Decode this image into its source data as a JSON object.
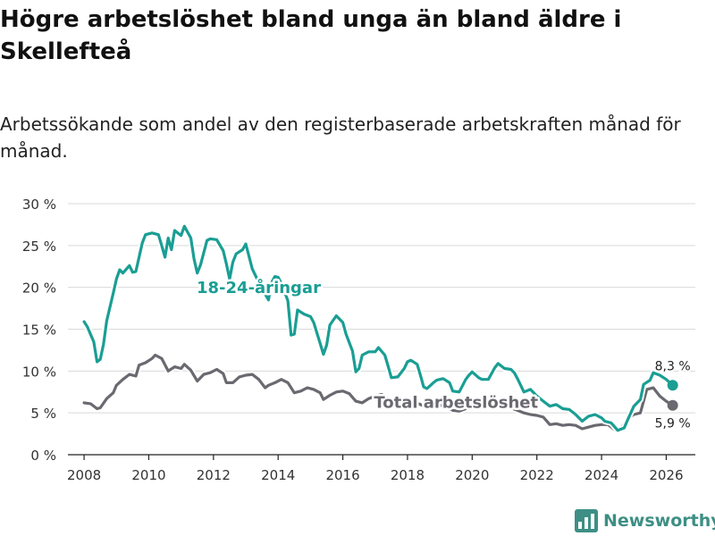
{
  "title": "Högre arbetslöshet bland unga än bland äldre i Skellefteå",
  "subtitle": "Arbetssökande som andel av den registerbaserade arbetskraften månad för månad.",
  "brand": {
    "name": "Newsworthy",
    "icon": "bar-chart-logo-icon",
    "color": "#3d8f85"
  },
  "chart_data": {
    "type": "line",
    "xlim": [
      2007.5,
      2026.9
    ],
    "ylim": [
      0,
      30
    ],
    "yticks": [
      {
        "value": 0,
        "label": "0 %"
      },
      {
        "value": 5,
        "label": "5 %"
      },
      {
        "value": 10,
        "label": "10 %"
      },
      {
        "value": 15,
        "label": "15 %"
      },
      {
        "value": 20,
        "label": "20 %"
      },
      {
        "value": 25,
        "label": "25 %"
      },
      {
        "value": 30,
        "label": "30 %"
      }
    ],
    "xticks": [
      {
        "value": 2008,
        "label": "2008"
      },
      {
        "value": 2010,
        "label": "2010"
      },
      {
        "value": 2012,
        "label": "2012"
      },
      {
        "value": 2014,
        "label": "2014"
      },
      {
        "value": 2016,
        "label": "2016"
      },
      {
        "value": 2018,
        "label": "2018"
      },
      {
        "value": 2020,
        "label": "2020"
      },
      {
        "value": 2022,
        "label": "2022"
      },
      {
        "value": 2024,
        "label": "2024"
      },
      {
        "value": 2026,
        "label": "2026"
      }
    ],
    "grid": true,
    "series": [
      {
        "name": "Total arbetslöshet",
        "color": "#6b6970",
        "label": "Total arbetslöshet",
        "end_label": "5,9 %",
        "points": [
          [
            2008.0,
            6.2
          ],
          [
            2008.2,
            6.1
          ],
          [
            2008.4,
            5.5
          ],
          [
            2008.5,
            5.6
          ],
          [
            2008.7,
            6.7
          ],
          [
            2008.9,
            7.4
          ],
          [
            2009.0,
            8.3
          ],
          [
            2009.2,
            9.0
          ],
          [
            2009.4,
            9.6
          ],
          [
            2009.6,
            9.4
          ],
          [
            2009.7,
            10.7
          ],
          [
            2009.9,
            11.0
          ],
          [
            2010.1,
            11.5
          ],
          [
            2010.2,
            11.9
          ],
          [
            2010.4,
            11.5
          ],
          [
            2010.6,
            10.0
          ],
          [
            2010.8,
            10.5
          ],
          [
            2011.0,
            10.3
          ],
          [
            2011.1,
            10.8
          ],
          [
            2011.3,
            10.1
          ],
          [
            2011.5,
            8.8
          ],
          [
            2011.7,
            9.6
          ],
          [
            2011.9,
            9.8
          ],
          [
            2012.1,
            10.2
          ],
          [
            2012.3,
            9.7
          ],
          [
            2012.4,
            8.6
          ],
          [
            2012.6,
            8.6
          ],
          [
            2012.8,
            9.3
          ],
          [
            2013.0,
            9.5
          ],
          [
            2013.2,
            9.6
          ],
          [
            2013.4,
            9.0
          ],
          [
            2013.6,
            8.0
          ],
          [
            2013.7,
            8.3
          ],
          [
            2013.9,
            8.6
          ],
          [
            2014.1,
            9.0
          ],
          [
            2014.3,
            8.6
          ],
          [
            2014.5,
            7.4
          ],
          [
            2014.7,
            7.6
          ],
          [
            2014.9,
            8.0
          ],
          [
            2015.1,
            7.8
          ],
          [
            2015.3,
            7.4
          ],
          [
            2015.4,
            6.6
          ],
          [
            2015.6,
            7.1
          ],
          [
            2015.8,
            7.5
          ],
          [
            2016.0,
            7.6
          ],
          [
            2016.2,
            7.3
          ],
          [
            2016.4,
            6.4
          ],
          [
            2016.6,
            6.2
          ],
          [
            2016.8,
            6.7
          ],
          [
            2017.0,
            7.0
          ],
          [
            2017.2,
            7.2
          ],
          [
            2017.4,
            6.7
          ],
          [
            2017.6,
            6.3
          ],
          [
            2017.8,
            6.1
          ],
          [
            2018.0,
            6.1
          ],
          [
            2018.2,
            6.3
          ],
          [
            2018.4,
            6.0
          ],
          [
            2018.6,
            5.6
          ],
          [
            2018.8,
            5.7
          ],
          [
            2019.0,
            5.9
          ],
          [
            2019.2,
            5.8
          ],
          [
            2019.4,
            5.3
          ],
          [
            2019.6,
            5.2
          ],
          [
            2019.8,
            5.5
          ],
          [
            2020.0,
            5.8
          ],
          [
            2020.2,
            6.0
          ],
          [
            2020.4,
            6.2
          ],
          [
            2020.6,
            6.0
          ],
          [
            2020.8,
            5.8
          ],
          [
            2021.0,
            5.7
          ],
          [
            2021.2,
            5.6
          ],
          [
            2021.4,
            5.3
          ],
          [
            2021.6,
            5.0
          ],
          [
            2021.8,
            4.8
          ],
          [
            2022.0,
            4.7
          ],
          [
            2022.2,
            4.5
          ],
          [
            2022.4,
            3.6
          ],
          [
            2022.6,
            3.7
          ],
          [
            2022.8,
            3.5
          ],
          [
            2023.0,
            3.6
          ],
          [
            2023.2,
            3.5
          ],
          [
            2023.4,
            3.1
          ],
          [
            2023.6,
            3.3
          ],
          [
            2023.8,
            3.5
          ],
          [
            2024.0,
            3.6
          ],
          [
            2024.2,
            3.6
          ],
          [
            2024.4,
            3.0
          ],
          [
            2024.6,
            3.1
          ],
          [
            2024.8,
            4.3
          ],
          [
            2025.0,
            4.8
          ],
          [
            2025.2,
            5.0
          ],
          [
            2025.4,
            7.8
          ],
          [
            2025.6,
            8.0
          ],
          [
            2025.8,
            7.0
          ],
          [
            2026.0,
            6.4
          ],
          [
            2026.2,
            5.9
          ]
        ]
      },
      {
        "name": "18-24-åringar",
        "color": "#1a9e94",
        "label": "18-24-åringar",
        "end_label": "8,3 %",
        "points": [
          [
            2008.0,
            15.9
          ],
          [
            2008.1,
            15.3
          ],
          [
            2008.3,
            13.5
          ],
          [
            2008.4,
            11.1
          ],
          [
            2008.5,
            11.4
          ],
          [
            2008.6,
            13.2
          ],
          [
            2008.7,
            16.0
          ],
          [
            2008.9,
            19.3
          ],
          [
            2009.0,
            21.0
          ],
          [
            2009.1,
            22.1
          ],
          [
            2009.2,
            21.7
          ],
          [
            2009.4,
            22.6
          ],
          [
            2009.5,
            21.8
          ],
          [
            2009.6,
            21.9
          ],
          [
            2009.8,
            25.3
          ],
          [
            2009.9,
            26.3
          ],
          [
            2010.1,
            26.5
          ],
          [
            2010.3,
            26.3
          ],
          [
            2010.4,
            25.0
          ],
          [
            2010.5,
            23.6
          ],
          [
            2010.6,
            25.9
          ],
          [
            2010.7,
            24.5
          ],
          [
            2010.8,
            26.8
          ],
          [
            2011.0,
            26.2
          ],
          [
            2011.1,
            27.3
          ],
          [
            2011.3,
            25.9
          ],
          [
            2011.4,
            23.4
          ],
          [
            2011.5,
            21.7
          ],
          [
            2011.6,
            22.7
          ],
          [
            2011.8,
            25.6
          ],
          [
            2011.9,
            25.8
          ],
          [
            2012.1,
            25.7
          ],
          [
            2012.3,
            24.4
          ],
          [
            2012.4,
            22.8
          ],
          [
            2012.5,
            21.0
          ],
          [
            2012.6,
            23.0
          ],
          [
            2012.7,
            24.0
          ],
          [
            2012.9,
            24.5
          ],
          [
            2013.0,
            25.2
          ],
          [
            2013.2,
            22.2
          ],
          [
            2013.3,
            21.4
          ],
          [
            2013.4,
            20.6
          ],
          [
            2013.6,
            19.2
          ],
          [
            2013.7,
            18.5
          ],
          [
            2013.8,
            20.6
          ],
          [
            2013.9,
            21.3
          ],
          [
            2014.0,
            21.2
          ],
          [
            2014.1,
            20.5
          ],
          [
            2014.3,
            18.4
          ],
          [
            2014.4,
            14.3
          ],
          [
            2014.5,
            14.4
          ],
          [
            2014.6,
            17.3
          ],
          [
            2014.8,
            16.8
          ],
          [
            2015.0,
            16.5
          ],
          [
            2015.1,
            15.8
          ],
          [
            2015.3,
            13.3
          ],
          [
            2015.4,
            12.0
          ],
          [
            2015.5,
            13.1
          ],
          [
            2015.6,
            15.5
          ],
          [
            2015.8,
            16.6
          ],
          [
            2016.0,
            15.8
          ],
          [
            2016.1,
            14.4
          ],
          [
            2016.3,
            12.4
          ],
          [
            2016.4,
            9.9
          ],
          [
            2016.5,
            10.3
          ],
          [
            2016.6,
            11.9
          ],
          [
            2016.8,
            12.3
          ],
          [
            2017.0,
            12.3
          ],
          [
            2017.1,
            12.8
          ],
          [
            2017.3,
            11.9
          ],
          [
            2017.4,
            10.6
          ],
          [
            2017.5,
            9.2
          ],
          [
            2017.7,
            9.3
          ],
          [
            2017.9,
            10.3
          ],
          [
            2018.0,
            11.1
          ],
          [
            2018.1,
            11.3
          ],
          [
            2018.3,
            10.8
          ],
          [
            2018.4,
            9.5
          ],
          [
            2018.5,
            8.1
          ],
          [
            2018.6,
            7.9
          ],
          [
            2018.8,
            8.6
          ],
          [
            2018.9,
            8.9
          ],
          [
            2019.1,
            9.1
          ],
          [
            2019.3,
            8.6
          ],
          [
            2019.4,
            7.6
          ],
          [
            2019.6,
            7.5
          ],
          [
            2019.8,
            9.0
          ],
          [
            2019.9,
            9.5
          ],
          [
            2020.0,
            9.9
          ],
          [
            2020.2,
            9.2
          ],
          [
            2020.3,
            9.0
          ],
          [
            2020.5,
            9.0
          ],
          [
            2020.7,
            10.4
          ],
          [
            2020.8,
            10.9
          ],
          [
            2021.0,
            10.3
          ],
          [
            2021.2,
            10.2
          ],
          [
            2021.3,
            9.8
          ],
          [
            2021.4,
            9.1
          ],
          [
            2021.6,
            7.5
          ],
          [
            2021.8,
            7.8
          ],
          [
            2022.0,
            7.0
          ],
          [
            2022.2,
            6.4
          ],
          [
            2022.4,
            5.8
          ],
          [
            2022.6,
            6.0
          ],
          [
            2022.8,
            5.5
          ],
          [
            2023.0,
            5.4
          ],
          [
            2023.2,
            4.8
          ],
          [
            2023.4,
            4.0
          ],
          [
            2023.6,
            4.6
          ],
          [
            2023.8,
            4.8
          ],
          [
            2024.0,
            4.4
          ],
          [
            2024.1,
            4.0
          ],
          [
            2024.3,
            3.8
          ],
          [
            2024.5,
            2.9
          ],
          [
            2024.7,
            3.2
          ],
          [
            2024.8,
            4.1
          ],
          [
            2025.0,
            5.8
          ],
          [
            2025.2,
            6.6
          ],
          [
            2025.3,
            8.4
          ],
          [
            2025.5,
            8.9
          ],
          [
            2025.6,
            9.8
          ],
          [
            2025.8,
            9.5
          ],
          [
            2026.0,
            9.0
          ],
          [
            2026.2,
            8.3
          ]
        ]
      }
    ]
  }
}
